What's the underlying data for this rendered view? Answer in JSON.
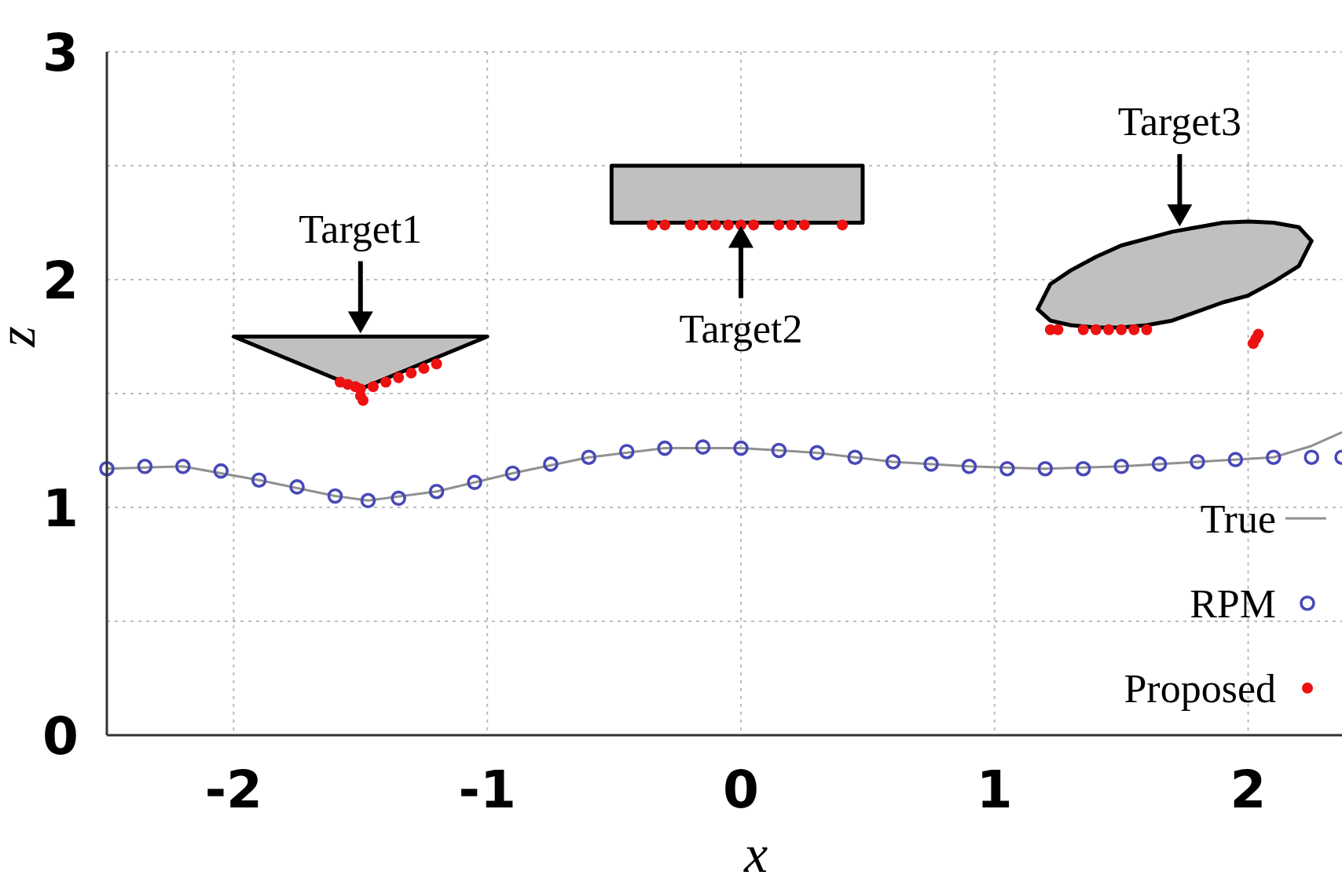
{
  "chart_data": {
    "type": "scatter",
    "xlabel": "x",
    "ylabel": "z",
    "xlim": [
      -2.5,
      2.37
    ],
    "ylim": [
      0,
      3
    ],
    "xticks": [
      -2,
      -1,
      0,
      1,
      2
    ],
    "yticks": [
      0,
      {
        "value": 0.5,
        "label": null
      },
      1,
      {
        "value": 1.5,
        "label": null
      },
      2,
      {
        "value": 2.5,
        "label": null
      },
      3
    ],
    "grid": true,
    "legend": "bottom right",
    "series": [
      {
        "type": "area",
        "color": "#c0c0c0",
        "x": [
          -2,
          -1,
          -1.5,
          -2
        ],
        "values": [
          1.75,
          1.75,
          1.52,
          1.75
        ]
      },
      {
        "type": "area",
        "color": "#c0c0c0",
        "x": [
          -0.51,
          0.48,
          0.48,
          -0.51,
          -0.51
        ],
        "values": [
          2.5,
          2.5,
          2.25,
          2.25,
          2.5
        ]
      },
      {
        "type": "area",
        "color": "#c0c0c0",
        "x": [
          1.17,
          1.22,
          1.3,
          1.4,
          1.5,
          1.6,
          1.7,
          1.8,
          1.9,
          2.0,
          2.1,
          2.2,
          2.25,
          2.2,
          2.1,
          2.0,
          1.9,
          1.8,
          1.7,
          1.6,
          1.5,
          1.4,
          1.3,
          1.22,
          1.17
        ],
        "values": [
          1.87,
          1.98,
          2.04,
          2.1,
          2.15,
          2.18,
          2.21,
          2.23,
          2.25,
          2.255,
          2.25,
          2.23,
          2.17,
          2.06,
          1.99,
          1.93,
          1.9,
          1.86,
          1.82,
          1.8,
          1.79,
          1.79,
          1.8,
          1.82,
          1.87
        ]
      },
      {
        "type": "line",
        "name": "True",
        "color": "#909090",
        "x": [
          -2.5,
          -2.2,
          -1.9,
          -1.6,
          -1.47,
          -1.2,
          -0.9,
          -0.6,
          -0.3,
          0,
          0.3,
          0.6,
          0.9,
          1.2,
          1.5,
          1.8,
          2.1,
          2.25,
          2.37
        ],
        "values": [
          1.17,
          1.18,
          1.12,
          1.05,
          1.03,
          1.07,
          1.15,
          1.22,
          1.26,
          1.26,
          1.24,
          1.2,
          1.18,
          1.17,
          1.18,
          1.2,
          1.22,
          1.27,
          1.33
        ]
      },
      {
        "type": "scatter",
        "name": "RPM",
        "color": "#4848b8",
        "marker": "circle",
        "x": [
          -2.5,
          -2.35,
          -2.2,
          -2.05,
          -1.9,
          -1.75,
          -1.6,
          -1.47,
          -1.35,
          -1.2,
          -1.05,
          -0.9,
          -0.75,
          -0.6,
          -0.45,
          -0.3,
          -0.15,
          0,
          0.15,
          0.3,
          0.45,
          0.6,
          0.75,
          0.9,
          1.05,
          1.2,
          1.35,
          1.5,
          1.65,
          1.8,
          1.95,
          2.1,
          2.25,
          2.37
        ],
        "values": [
          1.17,
          1.18,
          1.18,
          1.16,
          1.12,
          1.09,
          1.05,
          1.03,
          1.04,
          1.07,
          1.11,
          1.15,
          1.19,
          1.22,
          1.245,
          1.26,
          1.265,
          1.26,
          1.25,
          1.24,
          1.22,
          1.2,
          1.19,
          1.18,
          1.17,
          1.17,
          1.17,
          1.18,
          1.19,
          1.2,
          1.21,
          1.22,
          1.22,
          1.22
        ]
      },
      {
        "type": "scatter",
        "name": "Proposed",
        "color": "#ee1111",
        "marker": "circle",
        "x": [
          -1.58,
          -1.55,
          -1.52,
          -1.5,
          -1.5,
          -1.49,
          -1.45,
          -1.4,
          -1.35,
          -1.3,
          -1.25,
          -1.2,
          -0.35,
          -0.3,
          -0.2,
          -0.15,
          -0.1,
          -0.05,
          0,
          0.05,
          0.15,
          0.2,
          0.25,
          0.4,
          1.22,
          1.25,
          1.35,
          1.4,
          1.45,
          1.5,
          1.55,
          1.6,
          2.02,
          2.03,
          2.04
        ],
        "values": [
          1.55,
          1.54,
          1.53,
          1.52,
          1.49,
          1.47,
          1.53,
          1.55,
          1.57,
          1.59,
          1.61,
          1.63,
          2.24,
          2.24,
          2.24,
          2.24,
          2.24,
          2.24,
          2.24,
          2.24,
          2.24,
          2.24,
          2.24,
          2.24,
          1.78,
          1.78,
          1.78,
          1.78,
          1.78,
          1.78,
          1.78,
          1.78,
          1.72,
          1.74,
          1.76
        ]
      }
    ],
    "annotations": [
      {
        "text": "Target1",
        "x": -1.5,
        "y": 1.75
      },
      {
        "text": "Target2",
        "x": 0,
        "y": 2.25
      },
      {
        "text": "Target3",
        "x": 1.73,
        "y": 2.22
      }
    ]
  }
}
